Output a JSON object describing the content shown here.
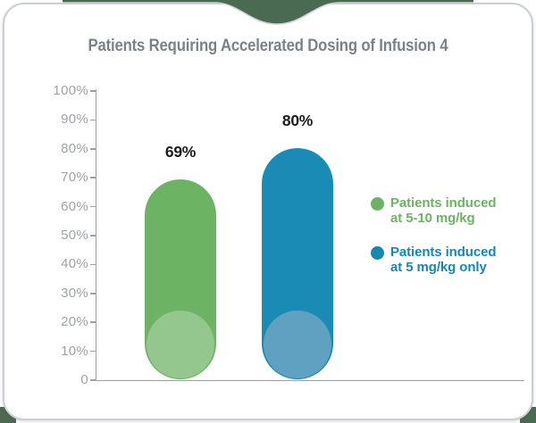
{
  "card": {
    "title": "Patients Requiring Accelerated Dosing of Infusion 4"
  },
  "chart_data": {
    "type": "bar",
    "title": "Patients Requiring Accelerated Dosing of Infusion 4",
    "categories": [
      "Patients induced at 5-10 mg/kg",
      "Patients induced at 5 mg/kg only"
    ],
    "values": [
      69,
      80
    ],
    "value_labels": [
      "69%",
      "80%"
    ],
    "xlabel": "",
    "ylabel": "",
    "ylim": [
      0,
      100
    ],
    "y_ticks": [
      "100%",
      "90%",
      "80%",
      "70%",
      "60%",
      "50%",
      "40%",
      "30%",
      "20%",
      "10%",
      "0"
    ],
    "grid": false,
    "legend_position": "right",
    "series_colors": [
      "#6CB364",
      "#1A8BB5"
    ],
    "series_accent_colors": [
      "#93C78D",
      "#60A1C1"
    ],
    "legend": [
      {
        "lines": [
          "Patients induced",
          "at 5-10 mg/kg"
        ],
        "color": "#6CB364"
      },
      {
        "lines": [
          "Patients induced",
          "at 5 mg/kg only"
        ],
        "color": "#1787B2"
      }
    ]
  },
  "colors": {
    "notch_background_green": "#4A6A52",
    "card_border": "#CBD0D4",
    "title_text": "#79828A",
    "axis_text": "#9CA3A9",
    "axis_line": "#9BA1A6",
    "value_label_text": "#1D1D1D"
  }
}
